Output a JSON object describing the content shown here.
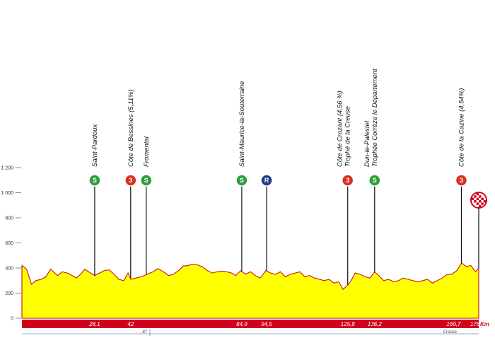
{
  "colors": {
    "profile_fill": "#ffff00",
    "profile_stroke": "#c4161c",
    "band": "#d0021b",
    "sprint": "#2e9e3b",
    "climb": "#d9301e",
    "feed": "#1f3c88",
    "finish_border": "#d0021b"
  },
  "units": {
    "km": "Km"
  },
  "bottom_labels": {
    "left": "87",
    "right": "Creuse"
  },
  "markers": [
    {
      "letter": "S",
      "type": "sprint",
      "names": [
        "Saint-Pardoux"
      ]
    },
    {
      "letter": "3",
      "type": "climb",
      "names": [
        "Côte de Bessines (5,11%)"
      ]
    },
    {
      "letter": "S",
      "type": "sprint",
      "names": [
        "Fromental"
      ]
    },
    {
      "letter": "S",
      "type": "sprint",
      "names": [
        "Saint-Maurice-la-Souterraine"
      ]
    },
    {
      "letter": "R",
      "type": "feed",
      "names": []
    },
    {
      "letter": "3",
      "type": "climb",
      "names": [
        "Côte de Crozant (4,56 %)",
        "Trophé de la Creuse"
      ]
    },
    {
      "letter": "S",
      "type": "sprint",
      "names": [
        "Dun-le-Palestel",
        "Trophée Corrèze le Département"
      ]
    },
    {
      "letter": "3",
      "type": "climb",
      "names": [
        "Côte de la Cazine (4,54%)"
      ]
    },
    {
      "letter": "",
      "type": "finish",
      "names": []
    }
  ],
  "chart_data": {
    "type": "area",
    "title": "",
    "xlabel": "Km",
    "ylabel": "",
    "x_range": [
      0,
      176.4
    ],
    "ylim": [
      0,
      1200
    ],
    "y_ticks": [
      0,
      200,
      400,
      600,
      800,
      "1 000",
      "1 200"
    ],
    "y_tick_values": [
      0,
      200,
      400,
      600,
      800,
      1000,
      1200
    ],
    "km_labels": [
      "28,1",
      "42",
      "84,9",
      "94,5",
      "125,8",
      "136,2",
      "169,7",
      "176,4"
    ],
    "km_values": [
      28.1,
      42,
      84.9,
      94.5,
      125.8,
      136.2,
      169.7,
      176.4
    ],
    "marker_km": [
      28.1,
      42,
      48,
      84.9,
      94.5,
      125.8,
      136.2,
      169.7,
      176.4
    ],
    "series": [
      {
        "x": [
          0,
          1.8,
          3.7,
          5.4,
          7.4,
          9.2,
          11.1,
          13.8,
          15.6,
          17.5,
          19.4,
          21.0,
          22.6,
          24.3,
          26.5,
          28.1,
          30.0,
          31.8,
          33.7,
          35.6,
          37.4,
          39.3,
          41.0,
          42.1,
          43.9,
          46.0,
          48.4,
          50.6,
          52.5,
          54.6,
          56.7,
          58.5,
          60.5,
          62.3,
          64.2,
          65.9,
          67.8,
          69.7,
          71.6,
          73.5,
          75.4,
          77.3,
          79.1,
          81.0,
          82.6,
          84.5,
          86.4,
          88.3,
          90.1,
          92.0,
          94.2,
          96.1,
          98.0,
          99.8,
          101.7,
          103.6,
          105.5,
          107.4,
          109.2,
          111.1,
          113.0,
          114.9,
          116.8,
          118.6,
          120.5,
          122.4,
          124.0,
          125.6,
          127.1,
          128.7,
          130.6,
          132.5,
          134.4,
          136.2,
          137.8,
          139.7,
          141.6,
          143.5,
          145.4,
          147.2,
          149.1,
          151.0,
          152.9,
          154.8,
          156.6,
          158.5,
          160.4,
          162.3,
          164.2,
          166.0,
          167.9,
          169.8,
          171.7,
          173.3,
          175.2,
          176.4
        ],
        "y": [
          420,
          390,
          270,
          300,
          310,
          330,
          390,
          340,
          370,
          360,
          340,
          320,
          350,
          390,
          360,
          340,
          360,
          380,
          385,
          350,
          310,
          300,
          360,
          310,
          320,
          330,
          350,
          370,
          395,
          370,
          340,
          350,
          380,
          415,
          420,
          430,
          425,
          410,
          380,
          360,
          370,
          375,
          370,
          360,
          340,
          380,
          350,
          370,
          340,
          320,
          380,
          360,
          350,
          370,
          330,
          350,
          360,
          370,
          330,
          340,
          320,
          310,
          300,
          310,
          280,
          290,
          230,
          260,
          300,
          360,
          350,
          330,
          320,
          370,
          340,
          300,
          310,
          290,
          300,
          320,
          310,
          300,
          290,
          300,
          310,
          280,
          300,
          320,
          350,
          350,
          380,
          440,
          410,
          420,
          370,
          400
        ]
      }
    ],
    "grid": false,
    "legend": "none"
  }
}
